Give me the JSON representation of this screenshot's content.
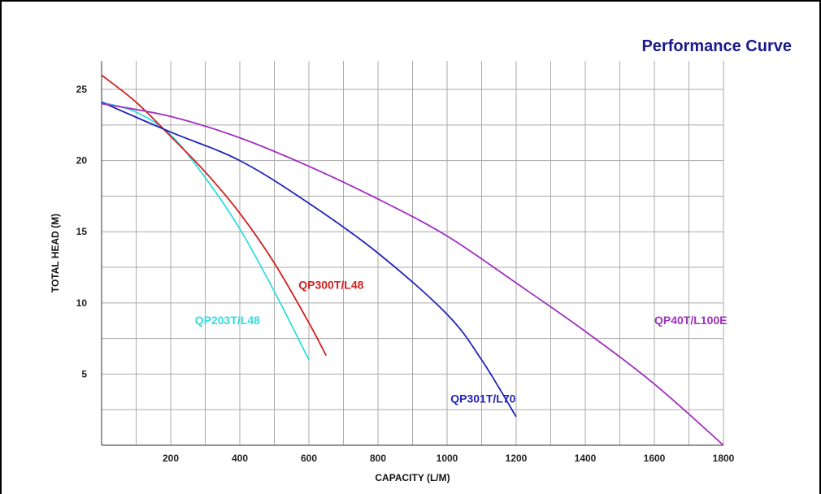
{
  "header": {
    "title": "Performance Curve"
  },
  "chart_data": {
    "type": "line",
    "title": "Performance Curve",
    "xlabel": "CAPACITY (L/M)",
    "ylabel": "TOTAL HEAD (M)",
    "xlim": [
      0,
      1800
    ],
    "ylim": [
      0,
      27
    ],
    "grid": true,
    "x_ticks": [
      200,
      400,
      600,
      800,
      1000,
      1200,
      1400,
      1600,
      1800
    ],
    "y_ticks": [
      5,
      10,
      15,
      20,
      25
    ],
    "series": [
      {
        "name": "QP203T/L48",
        "color": "#33dddd",
        "points": [
          [
            0,
            24.1
          ],
          [
            100,
            23.4
          ],
          [
            200,
            21.8
          ],
          [
            300,
            18.8
          ],
          [
            400,
            15.2
          ],
          [
            500,
            10.8
          ],
          [
            600,
            6.0
          ]
        ]
      },
      {
        "name": "QP300T/L48",
        "color": "#d02020",
        "points": [
          [
            0,
            26.0
          ],
          [
            100,
            24.1
          ],
          [
            200,
            21.7
          ],
          [
            300,
            19.2
          ],
          [
            400,
            16.3
          ],
          [
            500,
            12.8
          ],
          [
            600,
            8.6
          ],
          [
            650,
            6.3
          ]
        ]
      },
      {
        "name": "QP301T/L70",
        "color": "#2323b8",
        "points": [
          [
            0,
            24.1
          ],
          [
            200,
            22.0
          ],
          [
            400,
            20.0
          ],
          [
            600,
            17.0
          ],
          [
            800,
            13.5
          ],
          [
            1000,
            9.2
          ],
          [
            1100,
            6.0
          ],
          [
            1200,
            2.0
          ]
        ]
      },
      {
        "name": "QP40T/L100E",
        "color": "#a030c0",
        "points": [
          [
            0,
            24.0
          ],
          [
            200,
            23.1
          ],
          [
            400,
            21.6
          ],
          [
            600,
            19.6
          ],
          [
            800,
            17.3
          ],
          [
            1000,
            14.7
          ],
          [
            1200,
            11.4
          ],
          [
            1400,
            8.0
          ],
          [
            1600,
            4.3
          ],
          [
            1800,
            0.0
          ]
        ]
      }
    ],
    "series_labels": [
      {
        "series": "QP203T/L48",
        "x": 270,
        "y": 8.5
      },
      {
        "series": "QP300T/L48",
        "x": 570,
        "y": 11.0
      },
      {
        "series": "QP301T/L70",
        "x": 1010,
        "y": 3.0
      },
      {
        "series": "QP40T/L100E",
        "x": 1600,
        "y": 8.5
      }
    ]
  }
}
